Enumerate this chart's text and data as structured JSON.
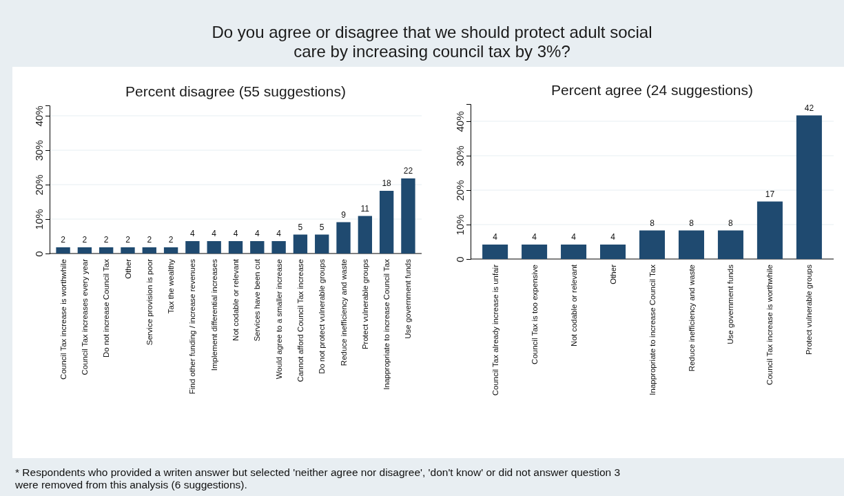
{
  "chart_data": [
    {
      "type": "bar",
      "title": "Do you agree or disagree that we should protect adult social care by increasing council tax by 3%?",
      "subtitle": "Percent disagree (55 suggestions)",
      "categories": [
        "Council Tax increase is worthwhile",
        "Council Tax increases every year",
        "Do not increase Council Tax",
        "Other",
        "Service provision is poor",
        "Tax the wealthy",
        "Find other funding / increase revenues",
        "Implement differential increases",
        "Not codable or relevant",
        "Services have been cut",
        "Would agree to a smaller increase",
        "Cannot afford Council Tax increase",
        "Do not protect vulnerable groups",
        "Reduce inefficiency and waste",
        "Protect vulnerable groups",
        "Inappropriate to increase Council Tax",
        "Use government funds"
      ],
      "values": [
        1.8,
        1.8,
        1.8,
        1.8,
        1.8,
        1.8,
        3.6,
        3.6,
        3.6,
        3.6,
        3.6,
        5.5,
        5.5,
        9.1,
        10.9,
        18.2,
        21.8
      ],
      "value_labels": [
        "2",
        "2",
        "2",
        "2",
        "2",
        "2",
        "4",
        "4",
        "4",
        "4",
        "4",
        "5",
        "5",
        "9",
        "11",
        "18",
        "22"
      ],
      "color": "#1f4a70",
      "ylim": [
        0,
        43
      ],
      "yticks": [
        {
          "value": 0,
          "label": "0"
        },
        {
          "value": 10,
          "label": "10%"
        },
        {
          "value": 20,
          "label": "20%"
        },
        {
          "value": 30,
          "label": "30%"
        },
        {
          "value": 40,
          "label": "40%"
        }
      ],
      "grid": "y",
      "annotations": [
        "* Respondents who provided a writen answer but selected 'neither agree nor disagree', 'don't know' or did not answer question 3 were removed from this analysis (6  suggestions)."
      ]
    },
    {
      "type": "bar",
      "title": "Percent agree (24 suggestions)",
      "categories": [
        "Council Tax already increase is unfair",
        "Council Tax is too expensive",
        "Not codable or relevant",
        "Other",
        "Inappropriate to increase Council Tax",
        "Reduce inefficiency and waste",
        "Use government funds",
        "Council Tax increase is worthwhile",
        "Protect vulnerable groups"
      ],
      "values": [
        4.2,
        4.2,
        4.2,
        4.2,
        8.3,
        8.3,
        8.3,
        16.7,
        41.7
      ],
      "value_labels": [
        "4",
        "4",
        "4",
        "4",
        "8",
        "8",
        "8",
        "17",
        "42"
      ],
      "color": "#1f4a70",
      "ylim": [
        0,
        45
      ],
      "yticks": [
        {
          "value": 0,
          "label": "0"
        },
        {
          "value": 10,
          "label": "10%"
        },
        {
          "value": 20,
          "label": "20%"
        },
        {
          "value": 30,
          "label": "30%"
        },
        {
          "value": 40,
          "label": "40%"
        }
      ],
      "grid": "y"
    }
  ]
}
